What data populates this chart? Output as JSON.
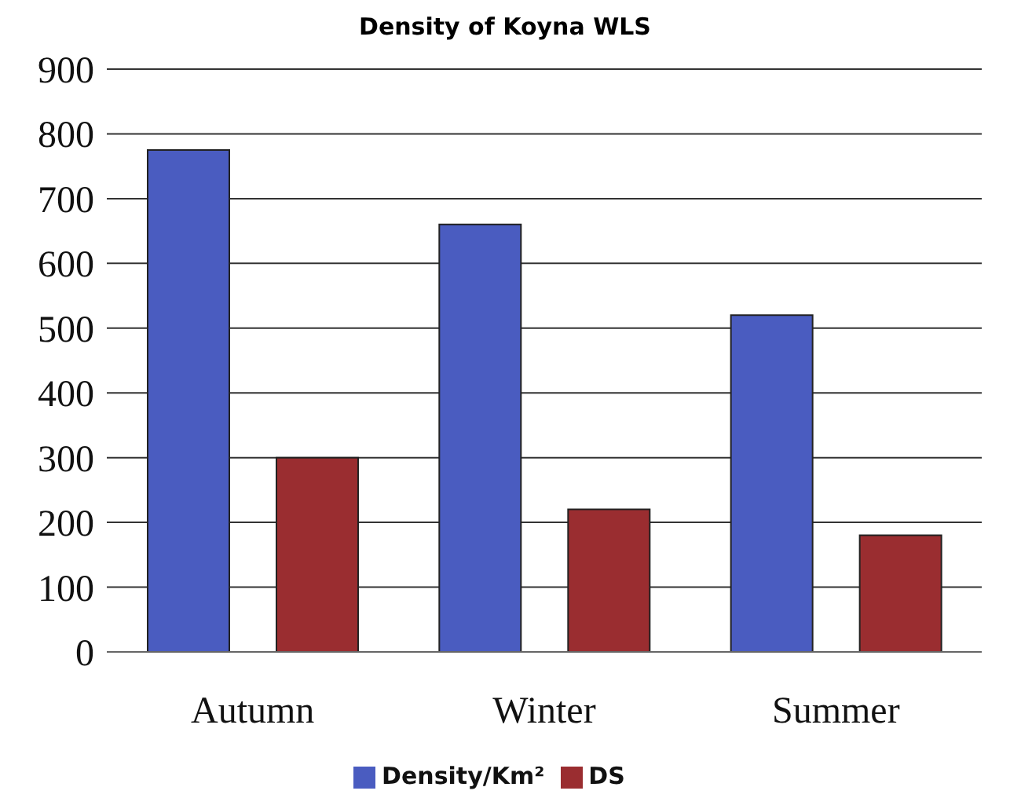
{
  "chart_data": {
    "type": "bar",
    "title": "Density of Koyna WLS",
    "categories": [
      "Autumn",
      "Winter",
      "Summer"
    ],
    "series": [
      {
        "name": "Density/Km²",
        "color": "#4a5cc0",
        "values": [
          775,
          660,
          520
        ]
      },
      {
        "name": "DS",
        "color": "#9a2d30",
        "values": [
          300,
          220,
          180
        ]
      }
    ],
    "ylim": [
      0,
      900
    ],
    "yticks": [
      0,
      100,
      200,
      300,
      400,
      500,
      600,
      700,
      800,
      900
    ],
    "grid": "y",
    "legend": "bottom"
  }
}
